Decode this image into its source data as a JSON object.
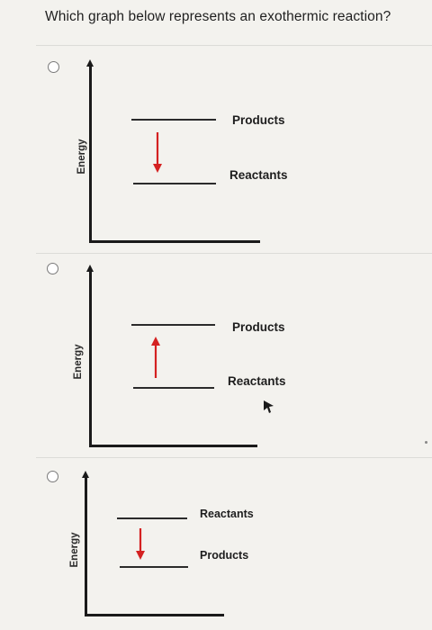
{
  "question": "Which graph below represents an exothermic reaction?",
  "colors": {
    "arrow": "#d42121",
    "axis": "#1a1a1a"
  },
  "options": [
    {
      "axis_label": "Energy",
      "upper_label": "Products",
      "lower_label": "Reactants",
      "arrow_direction": "down"
    },
    {
      "axis_label": "Energy",
      "upper_label": "Products",
      "lower_label": "Reactants",
      "arrow_direction": "up"
    },
    {
      "axis_label": "Energy",
      "upper_label": "Reactants",
      "lower_label": "Products",
      "arrow_direction": "down"
    }
  ]
}
